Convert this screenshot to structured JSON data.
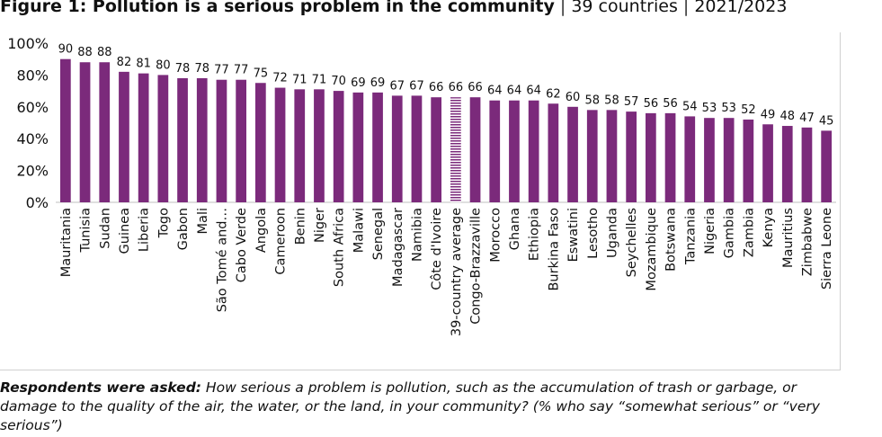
{
  "header": {
    "title_bold": "Figure 1: Pollution is a serious problem in the community",
    "sep1": "|",
    "subtitle_countries": "39 countries",
    "sep2": "|",
    "subtitle_years": "2021/2023"
  },
  "chart_data": {
    "type": "bar",
    "title": "Figure 1: Pollution is a serious problem in the community",
    "xlabel": "",
    "ylabel": "",
    "ylim": [
      0,
      100
    ],
    "yticks": [
      "0%",
      "20%",
      "40%",
      "60%",
      "80%",
      "100%"
    ],
    "ytick_values": [
      0,
      20,
      40,
      60,
      80,
      100
    ],
    "categories": [
      "Mauritania",
      "Tunisia",
      "Sudan",
      "Guinea",
      "Liberia",
      "Togo",
      "Gabon",
      "Mali",
      "São Tomé and…",
      "Cabo Verde",
      "Angola",
      "Cameroon",
      "Benin",
      "Niger",
      "South Africa",
      "Malawi",
      "Senegal",
      "Madagascar",
      "Namibia",
      "Côte d'Ivoire",
      "39-country average",
      "Congo-Brazzaville",
      "Morocco",
      "Ghana",
      "Ethiopia",
      "Burkina Faso",
      "Eswatini",
      "Lesotho",
      "Uganda",
      "Seychelles",
      "Mozambique",
      "Botswana",
      "Tanzania",
      "Nigeria",
      "Gambia",
      "Zambia",
      "Kenya",
      "Mauritius",
      "Zimbabwe",
      "Sierra Leone"
    ],
    "values": [
      90,
      88,
      88,
      82,
      81,
      80,
      78,
      78,
      77,
      77,
      75,
      72,
      71,
      71,
      70,
      69,
      69,
      67,
      67,
      66,
      66,
      66,
      64,
      64,
      64,
      62,
      60,
      58,
      58,
      57,
      56,
      56,
      54,
      53,
      53,
      52,
      49,
      48,
      47,
      45
    ],
    "highlight_category": "39-country average",
    "colors": {
      "bar": "#7b2a7b",
      "highlight": "#7b2a7b",
      "axis": "#bfbfbf"
    }
  },
  "note": {
    "lead": "Respondents were asked:",
    "text": " How serious a problem is pollution, such as the accumulation of trash or garbage, or damage to the quality of the air, the water, or the land, in your community? (% who say “somewhat serious” or “very serious”)"
  }
}
